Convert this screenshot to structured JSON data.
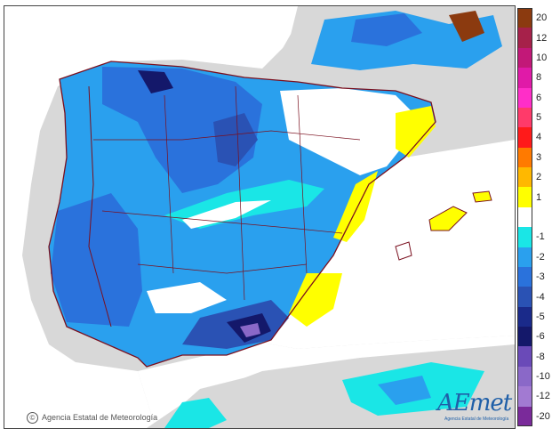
{
  "map": {
    "credit_text": "Agencia Estatal de Meteorología",
    "copyright_symbol": "©",
    "logo_text": "AEmet",
    "logo_tagline": "Agencia Estatal de Meteorología",
    "colors": {
      "sea": "#ffffff",
      "outside_land": "#d8d8d8",
      "border": "#7a0f1e"
    }
  },
  "legend": {
    "classes": [
      {
        "label": "20",
        "color": "#8b3a0f"
      },
      {
        "label": "12",
        "color": "#a6214a"
      },
      {
        "label": "10",
        "color": "#c21878"
      },
      {
        "label": "8",
        "color": "#e01aa8"
      },
      {
        "label": "6",
        "color": "#ff2ec8"
      },
      {
        "label": "5",
        "color": "#ff3a6a"
      },
      {
        "label": "4",
        "color": "#ff1a1a"
      },
      {
        "label": "3",
        "color": "#ff7a00"
      },
      {
        "label": "2",
        "color": "#ffb800"
      },
      {
        "label": "1",
        "color": "#ffff00"
      },
      {
        "label": "",
        "color": "#ffffff"
      },
      {
        "label": "-1",
        "color": "#1ae6e6"
      },
      {
        "label": "-2",
        "color": "#2aa0ee"
      },
      {
        "label": "-3",
        "color": "#2a72dc"
      },
      {
        "label": "-4",
        "color": "#2a52b4"
      },
      {
        "label": "-5",
        "color": "#1a2a8a"
      },
      {
        "label": "-6",
        "color": "#14186a"
      },
      {
        "label": "-8",
        "color": "#6a4ab8"
      },
      {
        "label": "-10",
        "color": "#8a68c8"
      },
      {
        "label": "-12",
        "color": "#a27ad2"
      },
      {
        "label": "-20",
        "color": "#7a2a9a"
      }
    ]
  }
}
